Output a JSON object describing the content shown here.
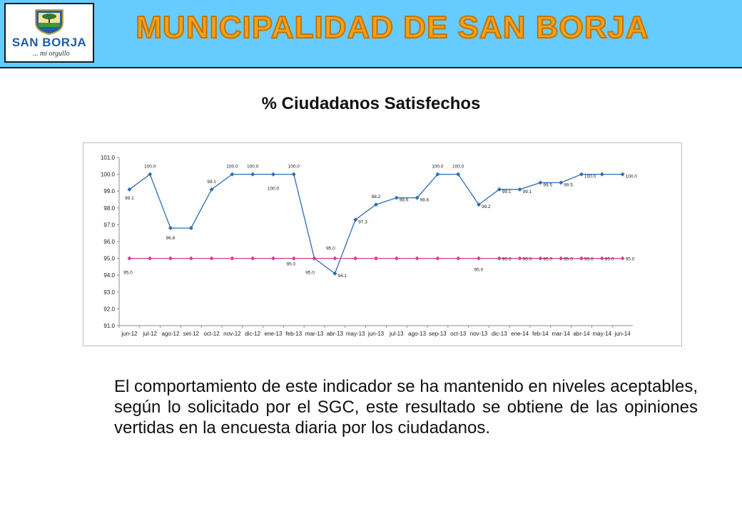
{
  "header": {
    "title": "MUNICIPALIDAD DE SAN BORJA",
    "logo_name": "SAN BORJA",
    "logo_tagline": "... mi orgullo"
  },
  "page_title": "% Ciudadanos Satisfechos",
  "paragraph": "El comportamiento de este indicador se ha mantenido en niveles aceptables, según lo solicitado por el SGC,  este resultado se obtiene de las opiniones vertidas en la encuesta diaria por los ciudadanos.",
  "colors": {
    "header_bg": "#66ccff",
    "title_orange": "#f4a11a",
    "series_blue": "#2e6db4",
    "series_pink": "#d63c93"
  },
  "chart_data": {
    "type": "line",
    "title": "",
    "xlabel": "",
    "ylabel": "",
    "ylim": [
      91.0,
      101.0
    ],
    "yticks": [
      "91.0",
      "92.0",
      "93.0",
      "94.0",
      "95.0",
      "96.0",
      "97.0",
      "98.0",
      "99.0",
      "100.0",
      "101.0"
    ],
    "categories": [
      "jun-12",
      "jul-12",
      "ago-12",
      "set-12",
      "oct-12",
      "nov-12",
      "dic-12",
      "ene-13",
      "feb-13",
      "mar-13",
      "abr-13",
      "may-13",
      "jun-13",
      "jul-13",
      "ago-13",
      "sep-13",
      "oct-13",
      "nov-13",
      "dic-13",
      "ene-14",
      "feb-14",
      "mar-14",
      "abr-14",
      "may-14",
      "jun-14"
    ],
    "grid": false,
    "legend": "none",
    "series": [
      {
        "color": "#2e6db4",
        "marker": "diamond",
        "values": [
          99.1,
          100.0,
          96.8,
          96.8,
          99.1,
          100.0,
          100.0,
          100.0,
          100.0,
          95.0,
          94.1,
          97.3,
          98.2,
          98.6,
          98.6,
          100.0,
          100.0,
          98.2,
          99.1,
          99.1,
          99.5,
          99.5,
          100.0,
          100.0,
          100.0
        ],
        "labels": [
          "99.1",
          "100.0",
          "96.8",
          "",
          "99.1",
          "100.0",
          "100.0",
          "100.0",
          "100.0",
          "",
          "94.1",
          "97.3",
          "98.2",
          "98.6",
          "98.6",
          "100.0",
          "100.0",
          "98.2",
          "99.1",
          "99.1",
          "99.5",
          "99.5",
          "100.0",
          "",
          "100.0"
        ]
      },
      {
        "color": "#d63c93",
        "marker": "diamond",
        "values": [
          95.0,
          95.0,
          95.0,
          95.0,
          95.0,
          95.0,
          95.0,
          95.0,
          95.0,
          95.0,
          95.0,
          95.0,
          95.0,
          95.0,
          95.0,
          95.0,
          95.0,
          95.0,
          95.0,
          95.0,
          95.0,
          95.0,
          95.0,
          95.0,
          95.0
        ],
        "labels": [
          "95.0",
          "",
          "",
          "",
          "",
          "",
          "",
          "",
          "95.0",
          "95.0",
          "95.0",
          "",
          "",
          "",
          "",
          "",
          "",
          "95.0",
          "95.0",
          "95.0",
          "95.0",
          "95.0",
          "95.0",
          "95.0",
          "95.0"
        ]
      }
    ]
  }
}
